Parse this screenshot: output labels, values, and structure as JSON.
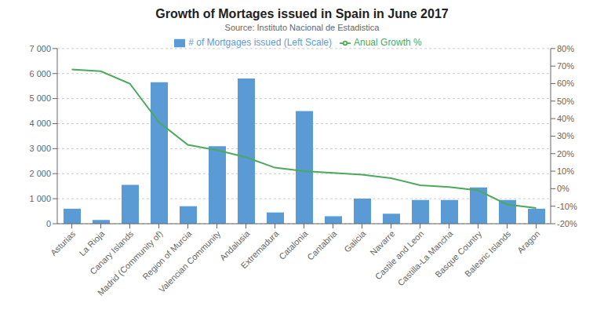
{
  "chart_data": {
    "type": "bar",
    "title": "Growth of Mortages issued in Spain in June 2017",
    "subtitle": "Source: Instituto Nacional de Estadistica",
    "categories": [
      "Asturias",
      "La Rioja",
      "Canary Islands",
      "Madrid (Community of)",
      "Region of Murcia",
      "Valencian Community",
      "Andalusia",
      "Extremadura",
      "Catalonia",
      "Cantabria",
      "Galicia",
      "Navarre",
      "Castile and Leon",
      "Castilla-La Mancha",
      "Basque Country",
      "Balearic Islands",
      "Aragon"
    ],
    "series": [
      {
        "name": "# of Mortgages issued (Left Scale)",
        "type": "bar",
        "color": "#5b9bd5",
        "values": [
          600,
          150,
          1550,
          5650,
          700,
          3100,
          5800,
          450,
          4500,
          300,
          1000,
          400,
          950,
          950,
          1450,
          950,
          600
        ]
      },
      {
        "name": "Anual Growth %",
        "type": "line",
        "axis": "y2",
        "color": "#4aaa5c",
        "values": [
          0.68,
          0.67,
          0.6,
          0.38,
          0.25,
          0.22,
          0.18,
          0.12,
          0.1,
          0.09,
          0.08,
          0.06,
          0.02,
          0.01,
          -0.01,
          -0.09,
          -0.11
        ]
      }
    ],
    "ylim": [
      0,
      7000
    ],
    "yticks": [
      0,
      {
        "value": 1000,
        "label": "1 000"
      },
      {
        "value": 2000,
        "label": "2 000"
      },
      {
        "value": 3000,
        "label": "3 000"
      },
      {
        "value": 4000,
        "label": "4 000"
      },
      {
        "value": 5000,
        "label": "5 000"
      },
      {
        "value": 6000,
        "label": "6 000"
      },
      {
        "value": 7000,
        "label": "7 000"
      }
    ],
    "y2lim": [
      -0.2,
      0.8
    ],
    "y2ticks": [
      {
        "value": -0.2,
        "label": "-20%"
      },
      {
        "value": -0.1,
        "label": "-10%"
      },
      {
        "value": 0.0,
        "label": "0%"
      },
      {
        "value": 0.1,
        "label": "10%"
      },
      {
        "value": 0.2,
        "label": "20%"
      },
      {
        "value": 0.3,
        "label": "30%"
      },
      {
        "value": 0.4,
        "label": "40%"
      },
      {
        "value": 0.5,
        "label": "50%"
      },
      {
        "value": 0.6,
        "label": "60%"
      },
      {
        "value": 0.7,
        "label": "70%"
      },
      {
        "value": 0.8,
        "label": "80%"
      }
    ],
    "grid": true,
    "legend": "top"
  }
}
